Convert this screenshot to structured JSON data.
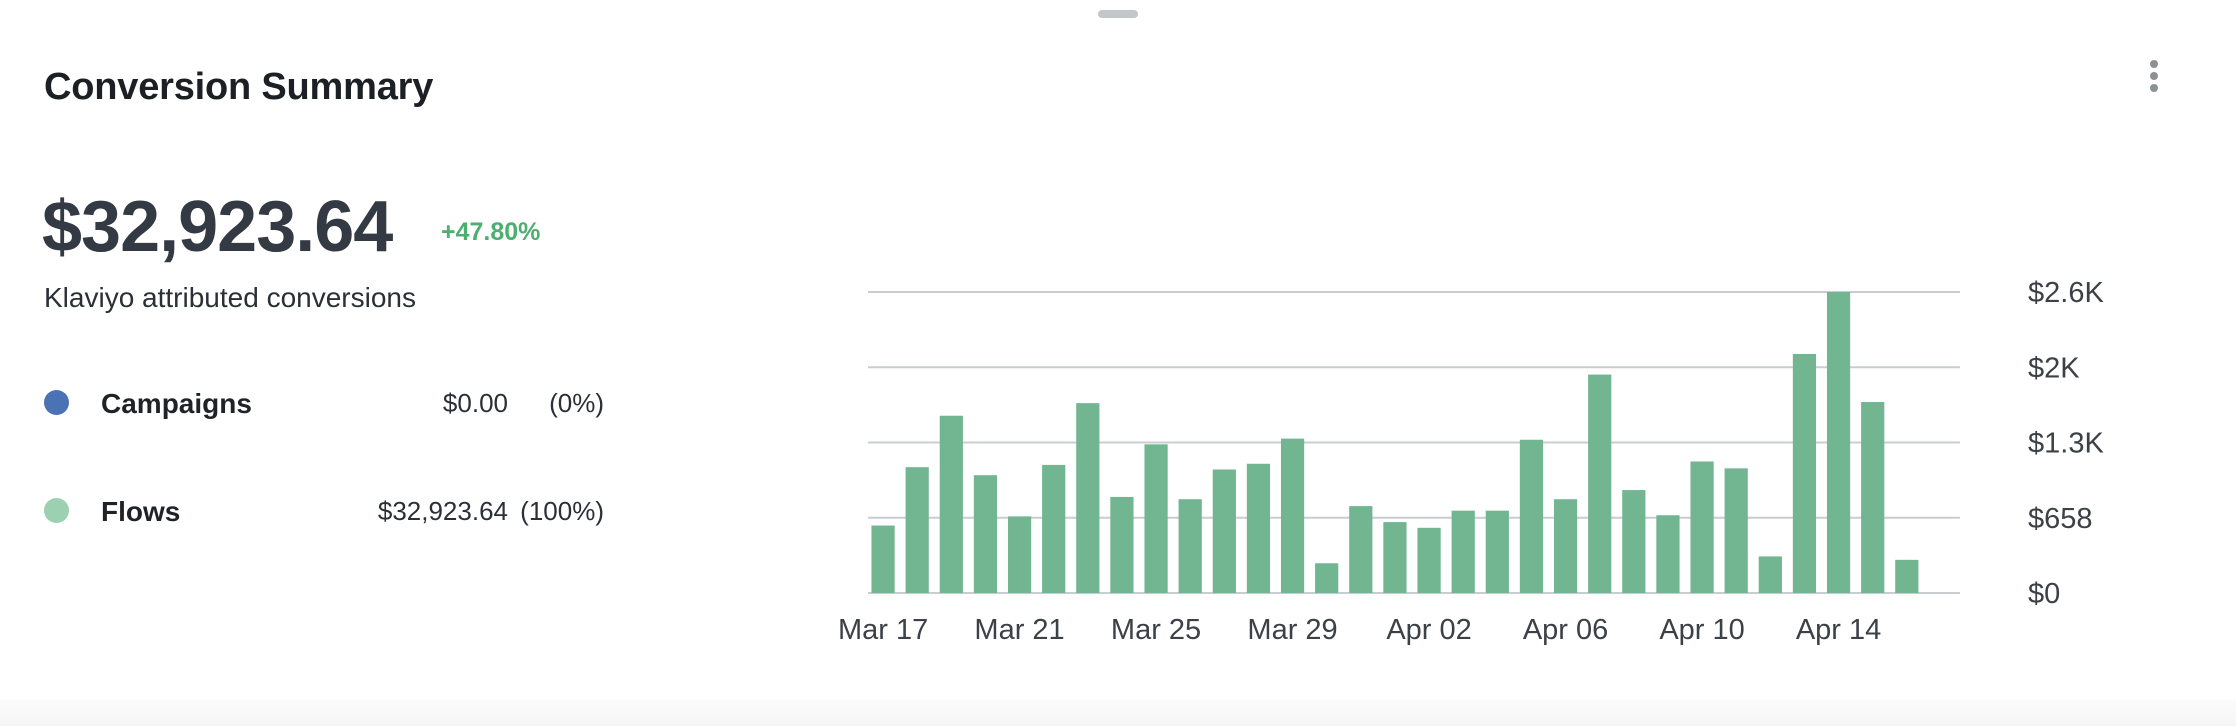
{
  "card": {
    "title": "Conversion Summary",
    "total_value": "$32,923.64",
    "total_change": "+47.80%",
    "total_label": "Klaviyo attributed conversions",
    "legend": [
      {
        "name": "Campaigns",
        "amount": "$0.00",
        "percent": "(0%)",
        "color": "#4a72b5"
      },
      {
        "name": "Flows",
        "amount": "$32,923.64",
        "percent": "(100%)",
        "color": "#9bd0b0"
      }
    ]
  },
  "chart_data": {
    "type": "bar",
    "title": "",
    "xlabel": "",
    "ylabel": "",
    "bar_color": "#72b591",
    "ylim": [
      0,
      2632
    ],
    "y_ticks": [
      {
        "value": 0,
        "label": "$0"
      },
      {
        "value": 658,
        "label": "$658"
      },
      {
        "value": 1316,
        "label": "$1.3K"
      },
      {
        "value": 1974,
        "label": "$2K"
      },
      {
        "value": 2632,
        "label": "$2.6K"
      }
    ],
    "x_tick_labels": [
      "Mar 17",
      "Mar 21",
      "Mar 25",
      "Mar 29",
      "Apr 02",
      "Apr 06",
      "Apr 10",
      "Apr 14"
    ],
    "x_tick_every": 4,
    "categories": [
      "Mar 17",
      "Mar 18",
      "Mar 19",
      "Mar 20",
      "Mar 21",
      "Mar 22",
      "Mar 23",
      "Mar 24",
      "Mar 25",
      "Mar 26",
      "Mar 27",
      "Mar 28",
      "Mar 29",
      "Mar 30",
      "Mar 31",
      "Apr 01",
      "Apr 02",
      "Apr 03",
      "Apr 04",
      "Apr 05",
      "Apr 06",
      "Apr 07",
      "Apr 08",
      "Apr 09",
      "Apr 10",
      "Apr 11",
      "Apr 12",
      "Apr 13",
      "Apr 14",
      "Apr 15",
      "Apr 16",
      "Apr 17"
    ],
    "values": [
      590,
      1100,
      1550,
      1030,
      670,
      1120,
      1660,
      840,
      1300,
      820,
      1080,
      1130,
      1350,
      260,
      760,
      620,
      570,
      720,
      720,
      1340,
      820,
      1910,
      900,
      680,
      1150,
      1090,
      320,
      2090,
      2632,
      1670,
      290,
      0
    ]
  }
}
